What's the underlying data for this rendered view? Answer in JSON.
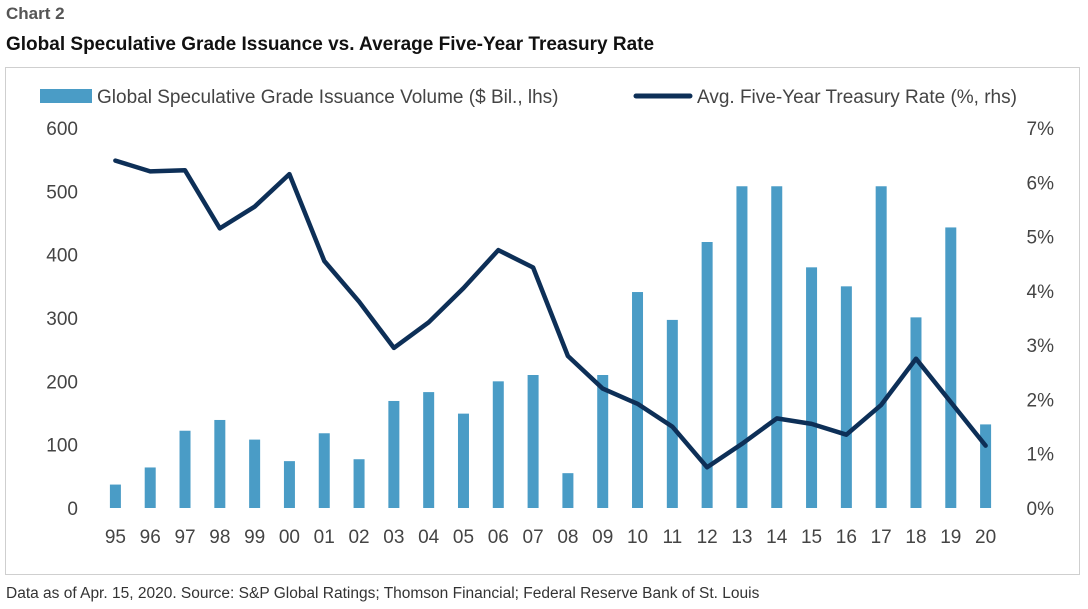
{
  "header": {
    "label": "Chart 2",
    "title": "Global Speculative Grade Issuance vs. Average Five-Year Treasury Rate"
  },
  "footnote": "Data as of Apr. 15, 2020. Source: S&P Global Ratings; Thomson Financial; Federal Reserve Bank of St. Louis",
  "colors": {
    "bar": "#4a9cc6",
    "line": "#0d2f57"
  },
  "chart_data": {
    "type": "bar+line",
    "categories": [
      "95",
      "96",
      "97",
      "98",
      "99",
      "00",
      "01",
      "02",
      "03",
      "04",
      "05",
      "06",
      "07",
      "08",
      "09",
      "10",
      "11",
      "12",
      "13",
      "14",
      "15",
      "16",
      "17",
      "18",
      "19",
      "20"
    ],
    "series": [
      {
        "name": "Global Speculative Grade Issuance Volume ($ Bil., lhs)",
        "type": "bar",
        "axis": "left",
        "values": [
          37,
          64,
          122,
          139,
          108,
          74,
          118,
          77,
          169,
          183,
          149,
          200,
          210,
          55,
          210,
          341,
          297,
          420,
          508,
          508,
          380,
          350,
          508,
          301,
          443,
          132
        ]
      },
      {
        "name": "Avg. Five-Year Treasury Rate (%, rhs)",
        "type": "line",
        "axis": "right",
        "values": [
          6.4,
          6.2,
          6.22,
          5.15,
          5.55,
          6.15,
          4.55,
          3.8,
          2.95,
          3.42,
          4.05,
          4.75,
          4.43,
          2.8,
          2.2,
          1.92,
          1.5,
          0.75,
          1.18,
          1.65,
          1.55,
          1.35,
          1.9,
          2.75,
          1.95,
          1.15
        ]
      }
    ],
    "y_left": {
      "ylim": [
        0,
        600
      ],
      "ticks": [
        "0",
        "100",
        "200",
        "300",
        "400",
        "500",
        "600"
      ]
    },
    "y_right": {
      "ylim": [
        0,
        7
      ],
      "ticks": [
        "0%",
        "1%",
        "2%",
        "3%",
        "4%",
        "5%",
        "6%",
        "7%"
      ]
    },
    "legend": "top",
    "grid": false
  }
}
